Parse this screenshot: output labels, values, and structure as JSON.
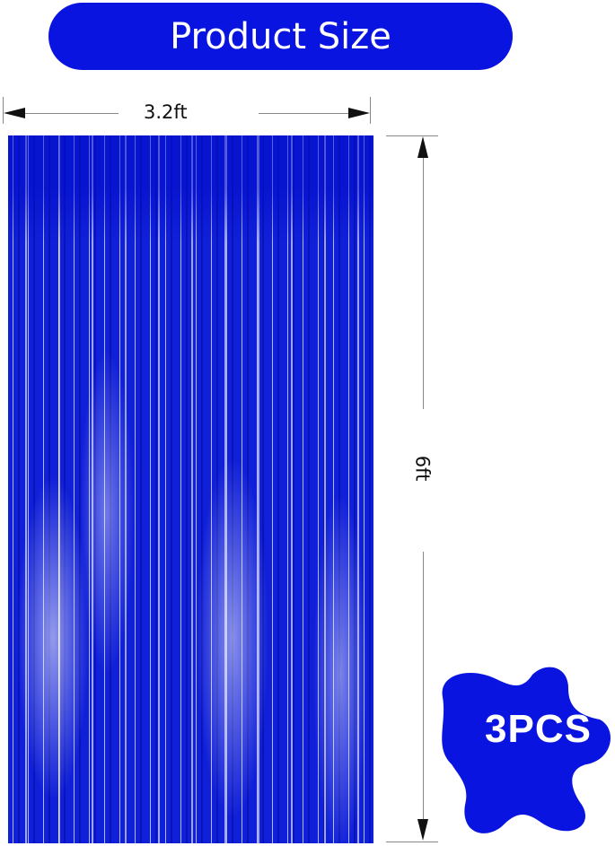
{
  "header": {
    "title": "Product Size"
  },
  "dimensions": {
    "width": "3.2ft",
    "height": "6ft"
  },
  "badge": {
    "text": "3PCS"
  },
  "colors": {
    "brand": "#0a14e0",
    "curtain": "#1020d8"
  }
}
